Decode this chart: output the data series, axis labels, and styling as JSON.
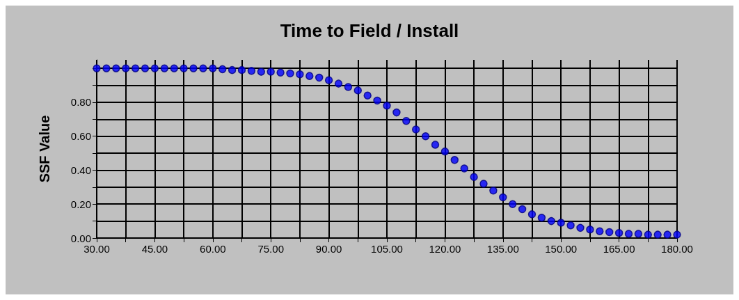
{
  "chart_data": {
    "type": "scatter",
    "title": "Time to Field / Install",
    "ylabel": "SSF Value",
    "x": [
      30,
      32.5,
      35,
      37.5,
      40,
      42.5,
      45,
      47.5,
      50,
      52.5,
      55,
      57.5,
      60,
      62.5,
      65,
      67.5,
      70,
      72.5,
      75,
      77.5,
      80,
      82.5,
      85,
      87.5,
      90,
      92.5,
      95,
      97.5,
      100,
      102.5,
      105,
      107.5,
      110,
      112.5,
      115,
      117.5,
      120,
      122.5,
      125,
      127.5,
      130,
      132.5,
      135,
      137.5,
      140,
      142.5,
      145,
      147.5,
      150,
      152.5,
      155,
      157.5,
      160,
      162.5,
      165,
      167.5,
      170,
      172.5,
      175,
      177.5,
      180
    ],
    "series": [
      {
        "color": "#0000ff",
        "values": [
          1.0,
          1.0,
          1.0,
          1.0,
          1.0,
          1.0,
          1.0,
          1.0,
          1.0,
          1.0,
          1.0,
          1.0,
          1.0,
          0.995,
          0.99,
          0.99,
          0.985,
          0.98,
          0.98,
          0.975,
          0.97,
          0.965,
          0.955,
          0.945,
          0.93,
          0.91,
          0.89,
          0.87,
          0.84,
          0.81,
          0.78,
          0.74,
          0.69,
          0.64,
          0.6,
          0.55,
          0.51,
          0.46,
          0.41,
          0.36,
          0.32,
          0.28,
          0.24,
          0.2,
          0.17,
          0.14,
          0.12,
          0.1,
          0.09,
          0.075,
          0.06,
          0.05,
          0.04,
          0.035,
          0.03,
          0.025,
          0.025,
          0.02,
          0.02,
          0.02,
          0.02
        ]
      }
    ],
    "xlim": [
      30,
      180
    ],
    "xticks": [
      {
        "value": 30,
        "label": "30.00"
      },
      {
        "value": 37.5,
        "label": null
      },
      {
        "value": 45,
        "label": "45.00"
      },
      {
        "value": 52.5,
        "label": null
      },
      {
        "value": 60,
        "label": "60.00"
      },
      {
        "value": 67.5,
        "label": null
      },
      {
        "value": 75,
        "label": "75.00"
      },
      {
        "value": 82.5,
        "label": null
      },
      {
        "value": 90,
        "label": "90.00"
      },
      {
        "value": 97.5,
        "label": null
      },
      {
        "value": 105,
        "label": "105.00"
      },
      {
        "value": 112.5,
        "label": null
      },
      {
        "value": 120,
        "label": "120.00"
      },
      {
        "value": 127.5,
        "label": null
      },
      {
        "value": 135,
        "label": "135.00"
      },
      {
        "value": 142.5,
        "label": null
      },
      {
        "value": 150,
        "label": "150.00"
      },
      {
        "value": 157.5,
        "label": null
      },
      {
        "value": 165,
        "label": "165.00"
      },
      {
        "value": 172.5,
        "label": null
      },
      {
        "value": 180,
        "label": "180.00"
      }
    ],
    "ylim": [
      0,
      1.05
    ],
    "yticks": [
      {
        "value": 0,
        "label": "0.00"
      },
      {
        "value": 0.1,
        "label": null
      },
      {
        "value": 0.2,
        "label": "0.20"
      },
      {
        "value": 0.3,
        "label": null
      },
      {
        "value": 0.4,
        "label": "0.40"
      },
      {
        "value": 0.5,
        "label": null
      },
      {
        "value": 0.6,
        "label": "0.60"
      },
      {
        "value": 0.7,
        "label": null
      },
      {
        "value": 0.8,
        "label": "0.80"
      },
      {
        "value": 0.9,
        "label": null
      },
      {
        "value": 1.0,
        "label": null
      }
    ],
    "grid": true,
    "marker": "circle"
  }
}
